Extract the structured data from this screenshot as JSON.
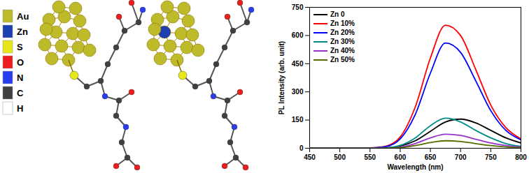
{
  "diagram": {
    "key": [
      {
        "label": "Au",
        "color": "#bdbb2a"
      },
      {
        "label": "Zn",
        "color": "#1d3fb0"
      },
      {
        "label": "S",
        "color": "#e6e619"
      },
      {
        "label": "O",
        "color": "#ee1c1c"
      },
      {
        "label": "N",
        "color": "#2a3cf0"
      },
      {
        "label": "C",
        "color": "#404040"
      },
      {
        "label": "H",
        "color": "#ffffff"
      }
    ]
  },
  "chart_data": {
    "type": "line",
    "xlabel": "Wavelength (nm)",
    "ylabel": "PL Intensity (arb. unit)",
    "x": [
      450,
      475,
      500,
      525,
      550,
      575,
      600,
      625,
      650,
      675,
      700,
      725,
      750,
      775,
      800
    ],
    "series": [
      {
        "name": "Zn 0",
        "color": "#000000",
        "values": [
          0,
          0,
          0,
          0,
          0,
          2,
          12,
          40,
          90,
          140,
          155,
          135,
          95,
          55,
          28
        ]
      },
      {
        "name": "Zn 10%",
        "color": "#ff0000",
        "values": [
          0,
          0,
          0,
          0,
          2,
          10,
          60,
          220,
          480,
          655,
          600,
          420,
          230,
          110,
          50
        ]
      },
      {
        "name": "Zn 20%",
        "color": "#0000ff",
        "values": [
          0,
          0,
          0,
          0,
          2,
          8,
          50,
          180,
          400,
          560,
          510,
          360,
          200,
          95,
          45
        ]
      },
      {
        "name": "Zn 30%",
        "color": "#008b8b",
        "values": [
          0,
          0,
          0,
          0,
          0,
          2,
          15,
          55,
          120,
          160,
          140,
          95,
          55,
          25,
          10
        ]
      },
      {
        "name": "Zn 40%",
        "color": "#9932cc",
        "values": [
          0,
          0,
          0,
          0,
          0,
          0,
          6,
          25,
          55,
          75,
          68,
          48,
          28,
          14,
          6
        ]
      },
      {
        "name": "Zn 50%",
        "color": "#556b00",
        "values": [
          0,
          0,
          0,
          0,
          0,
          0,
          3,
          14,
          30,
          40,
          36,
          25,
          14,
          7,
          3
        ]
      }
    ],
    "xlim": [
      450,
      800
    ],
    "xticks": [
      450,
      500,
      550,
      600,
      650,
      700,
      750,
      800
    ],
    "ylim": [
      0,
      750
    ],
    "yticks": [
      0,
      150,
      300,
      450,
      600,
      750
    ],
    "legend": "top-left"
  }
}
